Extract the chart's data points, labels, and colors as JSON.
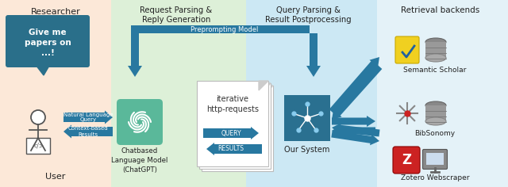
{
  "bg_color_left": "#fce8d8",
  "bg_color_middle": "#ddf0d8",
  "bg_color_right": "#cce8f4",
  "bg_color_far_right": "#e4f2f8",
  "arrow_color": "#2878a0",
  "chat_bubble_color": "#2a6f8a",
  "text_color": "#222222",
  "label_researcher": "Researcher",
  "label_user": "User",
  "label_request": "Request Parsing &\nReply Generation",
  "label_query": "Query Parsing &\nResult Postprocessing",
  "label_retrieval": "Retrieval backends",
  "label_chatgpt": "Chatbased\nLanguage Model\n(ChatGPT)",
  "label_our_system": "Our System",
  "label_preprompting": "Preprompting Model",
  "label_iterative": "iterative\nhttp-requests",
  "label_nlq": "Natural Language\nQuery",
  "label_cbr": "Context-based\nResults",
  "label_semantic": "Semantic Scholar",
  "label_bibsonomy": "BibSonomy",
  "label_zotero": "Zotero Webscraper",
  "label_query_arrow": "QUERY",
  "label_results_arrow": "RESULTS",
  "label_give_me": "Give me\npapers on\n...!"
}
